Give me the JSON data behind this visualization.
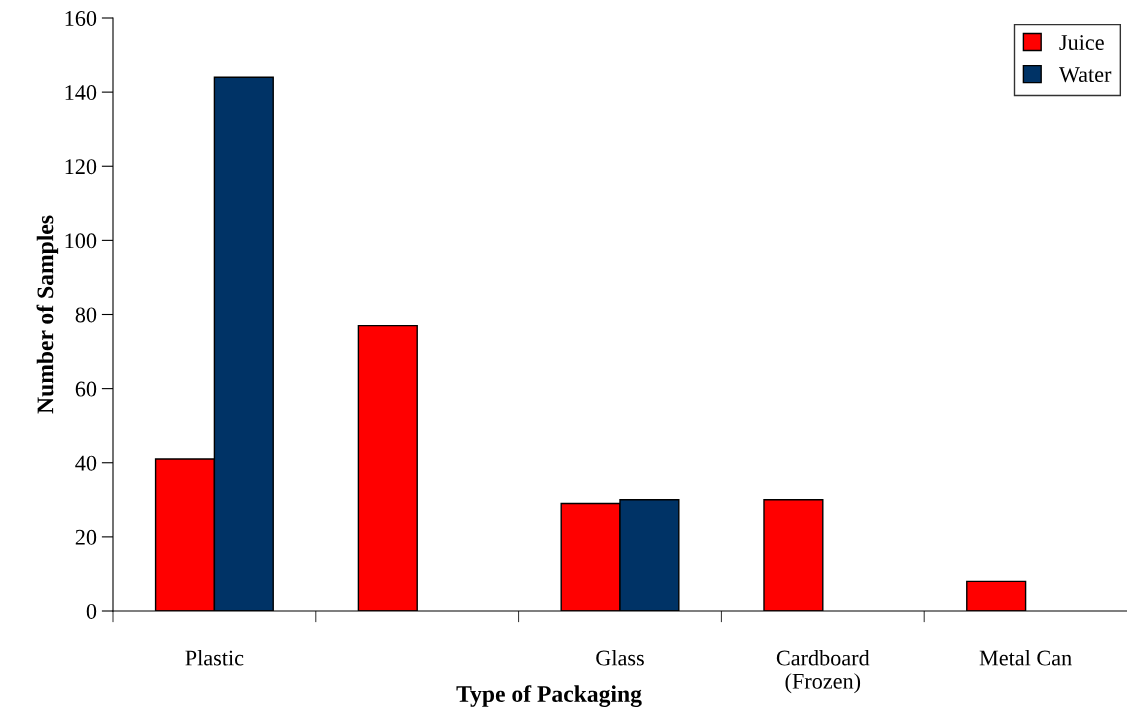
{
  "chart_data": {
    "type": "bar",
    "xlabel": "Type of Packaging",
    "ylabel": "Number of Samples",
    "categories": [
      "Plastic",
      null,
      "Glass",
      "Cardboard\n(Frozen)",
      "Metal Can"
    ],
    "series": [
      {
        "name": "Juice",
        "color": "#ff0000",
        "values": [
          41,
          77,
          29,
          30,
          8
        ]
      },
      {
        "name": "Water",
        "color": "#003366",
        "values": [
          144,
          null,
          30,
          null,
          null
        ]
      }
    ],
    "ylim": [
      0,
      160
    ],
    "yticks": [
      0,
      20,
      40,
      60,
      80,
      100,
      120,
      140,
      160
    ],
    "grid": false,
    "legend": "top right"
  }
}
